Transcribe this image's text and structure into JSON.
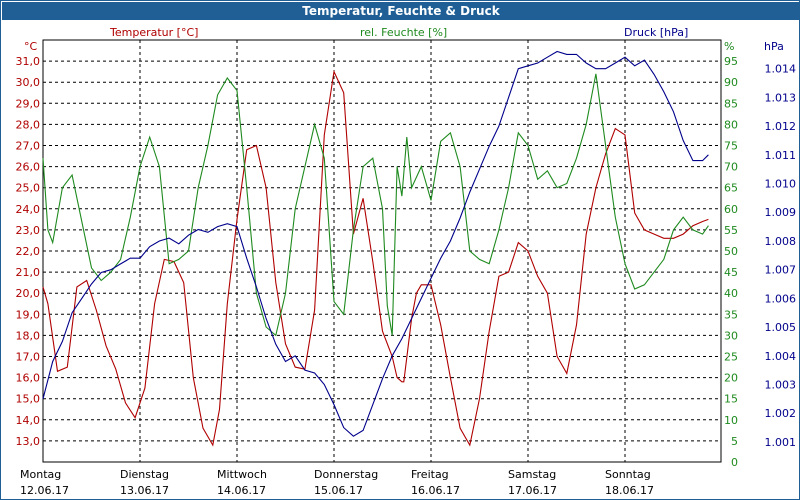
{
  "window": {
    "title": "Temperatur, Feuchte & Druck"
  },
  "colors": {
    "temperature": "#b00000",
    "humidity": "#1e8a1e",
    "pressure": "#00008b"
  },
  "chart_data": {
    "type": "line",
    "title": "Temperatur, Feuchte & Druck",
    "grid": true,
    "x_categories": [
      {
        "day": "Montag",
        "date": "12.06.17"
      },
      {
        "day": "Dienstag",
        "date": "13.06.17"
      },
      {
        "day": "Mittwoch",
        "date": "14.06.17"
      },
      {
        "day": "Donnerstag",
        "date": "15.06.17"
      },
      {
        "day": "Freitag",
        "date": "16.06.17"
      },
      {
        "day": "Samstag",
        "date": "17.06.17"
      },
      {
        "day": "Sonntag",
        "date": "18.06.17"
      }
    ],
    "axes": {
      "temperature": {
        "label": "Temperatur [°C]",
        "unit": "°C",
        "range": [
          12.0,
          32.0
        ],
        "ticks": [
          "13,0",
          "14,0",
          "15,0",
          "16,0",
          "17,0",
          "18,0",
          "19,0",
          "20,0",
          "21,0",
          "22,0",
          "23,0",
          "24,0",
          "25,0",
          "26,0",
          "27,0",
          "28,0",
          "29,0",
          "30,0",
          "31,0"
        ]
      },
      "humidity": {
        "label": "rel. Feuchte [%]",
        "unit": "%",
        "range": [
          0,
          100
        ],
        "ticks": [
          "0",
          "5",
          "10",
          "15",
          "20",
          "25",
          "30",
          "35",
          "40",
          "45",
          "50",
          "55",
          "60",
          "65",
          "70",
          "75",
          "80",
          "85",
          "90",
          "95"
        ]
      },
      "pressure": {
        "label": "Druck [hPa]",
        "unit": "hPa",
        "range": [
          1000.3,
          1015.0
        ],
        "ticks": [
          "1.001",
          "1.002",
          "1.003",
          "1.004",
          "1.005",
          "1.006",
          "1.007",
          "1.008",
          "1.009",
          "1.010",
          "1.011",
          "1.012",
          "1.013",
          "1.014"
        ]
      }
    },
    "series": [
      {
        "name": "Temperatur [°C]",
        "axis": "temperature",
        "x": [
          0,
          0.05,
          0.15,
          0.25,
          0.35,
          0.45,
          0.55,
          0.65,
          0.75,
          0.85,
          0.95,
          1.05,
          1.15,
          1.25,
          1.35,
          1.45,
          1.55,
          1.65,
          1.75,
          1.82,
          1.9,
          2.0,
          2.1,
          2.2,
          2.3,
          2.4,
          2.5,
          2.6,
          2.7,
          2.8,
          2.9,
          3.0,
          3.1,
          3.2,
          3.3,
          3.4,
          3.5,
          3.6,
          3.65,
          3.7,
          3.72,
          3.8,
          3.85,
          3.9,
          4.0,
          4.1,
          4.2,
          4.3,
          4.4,
          4.5,
          4.6,
          4.7,
          4.8,
          4.9,
          5.0,
          5.1,
          5.2,
          5.3,
          5.4,
          5.5,
          5.6,
          5.7,
          5.8,
          5.9,
          6.0,
          6.1,
          6.2,
          6.3,
          6.4,
          6.5,
          6.6,
          6.7,
          6.8,
          6.86
        ],
        "values": [
          20.3,
          19.5,
          16.3,
          16.5,
          20.3,
          20.6,
          19.2,
          17.5,
          16.4,
          14.8,
          14.1,
          15.5,
          19.5,
          21.6,
          21.5,
          20.5,
          16.0,
          13.6,
          12.8,
          14.5,
          19.5,
          23.5,
          26.8,
          27.0,
          25.0,
          20.5,
          17.6,
          16.5,
          16.4,
          19.2,
          27.5,
          30.5,
          29.5,
          22.8,
          24.5,
          21.5,
          18.2,
          17.0,
          16.0,
          15.8,
          15.8,
          18.8,
          20.0,
          20.4,
          20.4,
          18.5,
          16.0,
          13.6,
          12.8,
          15.0,
          18.2,
          20.8,
          21.0,
          22.4,
          22.0,
          20.8,
          20.0,
          17.0,
          16.2,
          18.5,
          22.8,
          25.0,
          26.6,
          27.8,
          27.5,
          23.8,
          23.0,
          22.8,
          22.6,
          22.6,
          22.8,
          23.2,
          23.4,
          23.5
        ]
      },
      {
        "name": "rel. Feuchte [%]",
        "axis": "humidity",
        "x": [
          0,
          0.05,
          0.1,
          0.2,
          0.3,
          0.4,
          0.5,
          0.6,
          0.7,
          0.8,
          0.9,
          1.0,
          1.1,
          1.2,
          1.3,
          1.4,
          1.5,
          1.6,
          1.7,
          1.8,
          1.9,
          2.0,
          2.1,
          2.2,
          2.3,
          2.4,
          2.5,
          2.6,
          2.7,
          2.8,
          2.9,
          3.0,
          3.1,
          3.2,
          3.3,
          3.4,
          3.5,
          3.55,
          3.6,
          3.65,
          3.7,
          3.75,
          3.8,
          3.9,
          4.0,
          4.1,
          4.2,
          4.3,
          4.4,
          4.5,
          4.6,
          4.7,
          4.8,
          4.9,
          5.0,
          5.1,
          5.2,
          5.3,
          5.4,
          5.5,
          5.6,
          5.7,
          5.8,
          5.9,
          6.0,
          6.1,
          6.2,
          6.3,
          6.4,
          6.5,
          6.6,
          6.7,
          6.8,
          6.86
        ],
        "values": [
          72,
          55,
          52,
          65,
          68,
          57,
          46,
          43,
          45,
          48,
          58,
          70,
          77,
          70,
          47,
          48,
          50,
          65,
          75,
          87,
          91,
          88,
          65,
          40,
          32,
          30,
          40,
          60,
          70,
          80,
          72,
          38,
          35,
          55,
          70,
          72,
          60,
          37,
          30,
          70,
          63,
          77,
          65,
          70,
          62,
          76,
          78,
          70,
          50,
          48,
          47,
          55,
          65,
          78,
          75,
          67,
          69,
          65,
          66,
          72,
          80,
          92,
          75,
          58,
          47,
          41,
          42,
          45,
          48,
          55,
          58,
          55,
          54,
          56
        ]
      },
      {
        "name": "Druck [hPa]",
        "axis": "pressure",
        "x": [
          0,
          0.1,
          0.2,
          0.3,
          0.4,
          0.5,
          0.6,
          0.7,
          0.8,
          0.9,
          1.0,
          1.1,
          1.2,
          1.3,
          1.4,
          1.5,
          1.6,
          1.7,
          1.8,
          1.9,
          2.0,
          2.1,
          2.2,
          2.3,
          2.4,
          2.5,
          2.6,
          2.7,
          2.8,
          2.9,
          3.0,
          3.1,
          3.2,
          3.3,
          3.4,
          3.5,
          3.6,
          3.7,
          3.8,
          3.9,
          4.0,
          4.1,
          4.2,
          4.3,
          4.4,
          4.5,
          4.6,
          4.7,
          4.8,
          4.9,
          5.0,
          5.1,
          5.2,
          5.3,
          5.4,
          5.5,
          5.6,
          5.7,
          5.8,
          5.9,
          6.0,
          6.1,
          6.2,
          6.3,
          6.4,
          6.5,
          6.6,
          6.7,
          6.8,
          6.86
        ],
        "values": [
          1002.5,
          1003.8,
          1004.5,
          1005.5,
          1006.0,
          1006.5,
          1006.9,
          1007.0,
          1007.2,
          1007.4,
          1007.4,
          1007.8,
          1008.0,
          1008.1,
          1007.9,
          1008.2,
          1008.4,
          1008.3,
          1008.5,
          1008.6,
          1008.5,
          1007.4,
          1006.4,
          1005.3,
          1004.4,
          1003.8,
          1004.0,
          1003.5,
          1003.4,
          1003.0,
          1002.3,
          1001.5,
          1001.2,
          1001.4,
          1002.3,
          1003.2,
          1004.0,
          1004.6,
          1005.3,
          1006.0,
          1006.7,
          1007.4,
          1008.0,
          1008.8,
          1009.7,
          1010.5,
          1011.3,
          1012.0,
          1013.0,
          1014.0,
          1014.1,
          1014.2,
          1014.4,
          1014.6,
          1014.5,
          1014.5,
          1014.2,
          1014.0,
          1014.0,
          1014.2,
          1014.4,
          1014.1,
          1014.3,
          1013.8,
          1013.2,
          1012.5,
          1011.5,
          1010.8,
          1010.8,
          1011.0
        ]
      }
    ]
  }
}
